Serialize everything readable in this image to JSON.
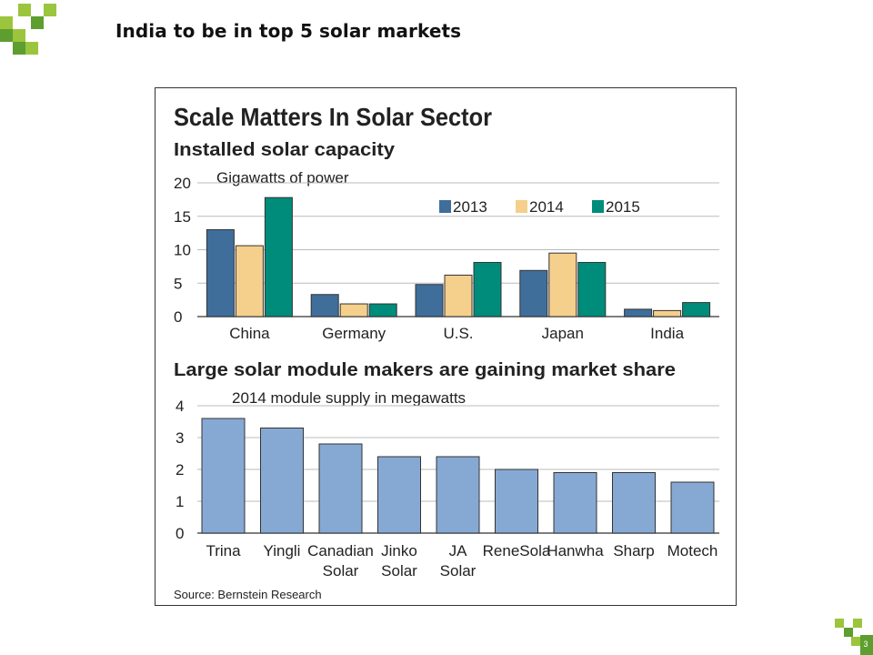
{
  "slide": {
    "title": "India to be in top 5 solar markets",
    "page_number": "3",
    "accent_light": "#9bc53d",
    "accent_dark": "#5d9e2f"
  },
  "figure": {
    "headline": "Scale Matters In Solar Sector",
    "source": "Source: Bernstein Research"
  },
  "chart_data": [
    {
      "type": "bar",
      "title": "Installed solar capacity",
      "subtitle": "Gigawatts of power",
      "categories": [
        "China",
        "Germany",
        "U.S.",
        "Japan",
        "India"
      ],
      "series": [
        {
          "name": "2013",
          "color": "#3f6e9b",
          "values": [
            13,
            3.3,
            4.8,
            6.9,
            1.1
          ]
        },
        {
          "name": "2014",
          "color": "#f5cf8c",
          "values": [
            10.6,
            1.9,
            6.2,
            9.5,
            0.9
          ]
        },
        {
          "name": "2015",
          "color": "#008c7a",
          "values": [
            17.8,
            1.9,
            8.1,
            8.1,
            2.1
          ]
        }
      ],
      "yticks": [
        "0",
        "5",
        "10",
        "15",
        "20"
      ],
      "ylim": [
        0,
        20
      ],
      "legend": "top-right",
      "grid": true
    },
    {
      "type": "bar",
      "title": "Large solar module makers are gaining market share",
      "subtitle": "2014 module supply in megawatts",
      "categories": [
        [
          "Trina"
        ],
        [
          "Yingli"
        ],
        [
          "Canadian",
          "Solar"
        ],
        [
          "Jinko",
          "Solar"
        ],
        [
          "JA",
          "Solar"
        ],
        [
          "ReneSola"
        ],
        [
          "Hanwha"
        ],
        [
          "Sharp"
        ],
        [
          "Motech"
        ]
      ],
      "series": [
        {
          "color": "#86a9d4",
          "values": [
            3.6,
            3.3,
            2.8,
            2.4,
            2.4,
            2.0,
            1.9,
            1.9,
            1.6
          ]
        }
      ],
      "yticks": [
        "0",
        "1",
        "2",
        "3",
        "4"
      ],
      "ylim": [
        0,
        4
      ],
      "grid": true
    }
  ]
}
